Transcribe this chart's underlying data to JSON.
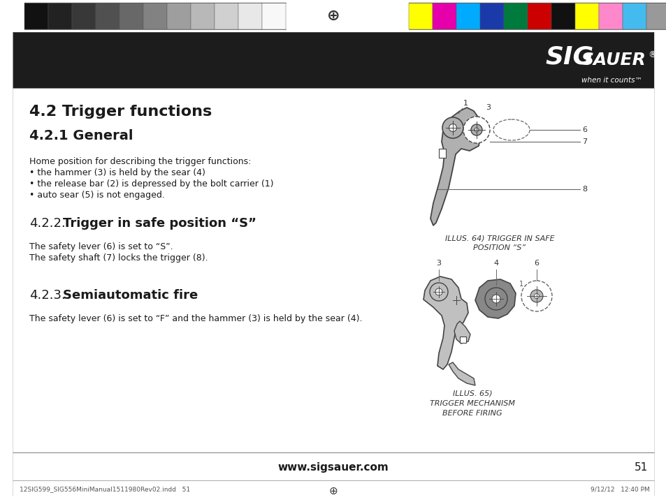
{
  "page_bg": "#ffffff",
  "header_bg": "#1c1c1c",
  "title1": "4.2 Trigger functions",
  "title2": "4.2.1 General",
  "body1_lines": [
    "Home position for describing the trigger functions:",
    "• the hammer (3) is held by the sear (4)",
    "• the release bar (2) is depressed by the bolt carrier (1)",
    "• auto sear (5) is not engaged."
  ],
  "body2_lines": [
    "The safety lever (6) is set to “S”.",
    "The safety shaft (7) locks the trigger (8)."
  ],
  "body3_lines": [
    "The safety lever (6) is set to “F” and the hammer (3) is held by the sear (4)."
  ],
  "illus1_caption": "ILLUS. 64) TRIGGER IN SAFE\nPOSITION “S”",
  "illus2_caption": "ILLUS. 65)\nTRIGGER MECHANISM\nBEFORE FIRING",
  "footer_text": "www.sigsauer.com",
  "footer_page": "51",
  "footer_small_left": "12SIG599_SIG556MiniManual1511980Rev02.indd   51",
  "footer_small_right": "9/12/12   12:40 PM",
  "sw_left_colors": [
    "#111111",
    "#222222",
    "#383838",
    "#505050",
    "#686868",
    "#828282",
    "#9e9e9e",
    "#b8b8b8",
    "#d0d0d0",
    "#e8e8e8",
    "#f8f8f8"
  ],
  "sw_right_colors": [
    "#ffff00",
    "#e600ac",
    "#00aaff",
    "#1a3aaa",
    "#007a3d",
    "#cc0000",
    "#111111",
    "#ffff00",
    "#ff88cc",
    "#44bbee",
    "#999999"
  ],
  "trigger_gray": "#b0b0b0",
  "trigger_dark": "#444444",
  "trigger_line": "#666666"
}
